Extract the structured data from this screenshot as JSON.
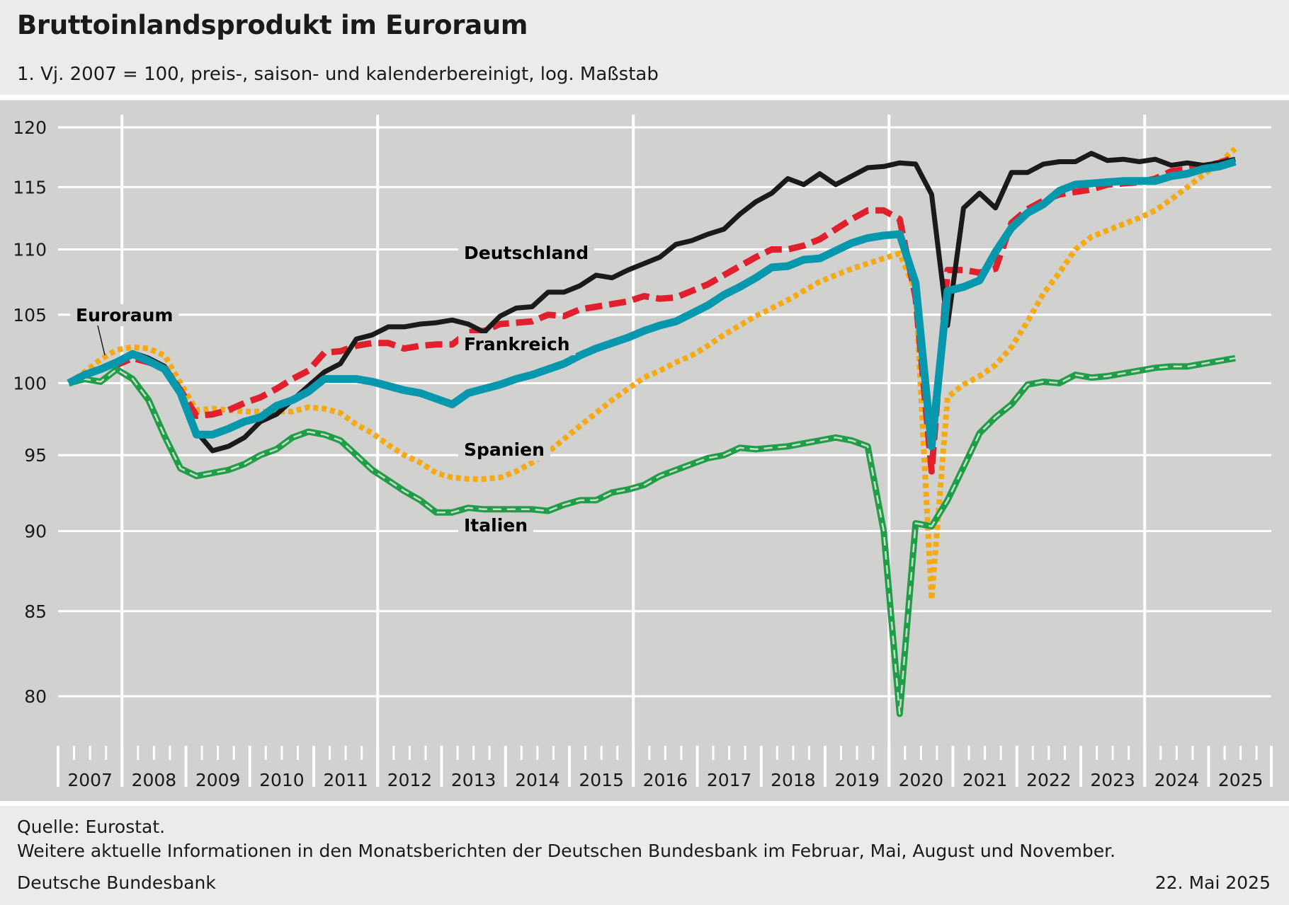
{
  "header": {
    "title": "Bruttoinlandsprodukt im Euroraum",
    "subtitle": "1. Vj. 2007 = 100, preis-, saison- und kalenderbereinigt, log. Maßstab"
  },
  "footer": {
    "source": "Quelle: Eurostat.",
    "note": "Weitere aktuelle Informationen in den Monatsberichten der Deutschen Bundesbank im Februar, Mai, August und November.",
    "publisher": "Deutsche Bundesbank",
    "date": "22. Mai 2025"
  },
  "chart_data": {
    "type": "line",
    "title": "Bruttoinlandsprodukt im Euroraum",
    "subtitle": "1. Vj. 2007 = 100, preis-, saison- und kalenderbereinigt, log. Maßstab",
    "y_scale": "log",
    "ylim": [
      77,
      120
    ],
    "y_ticks": [
      80,
      85,
      90,
      95,
      100,
      105,
      110,
      115,
      120
    ],
    "x_ticks": [
      "2007",
      "2008",
      "2009",
      "2010",
      "2011",
      "2012",
      "2013",
      "2014",
      "2015",
      "2016",
      "2017",
      "2018",
      "2019",
      "2020",
      "2021",
      "2022",
      "2023",
      "2024",
      "2025"
    ],
    "x_start": "2007 Q1",
    "frequency": "quarterly",
    "grid": true,
    "series": [
      {
        "name": "Deutschland",
        "color": "#1a1a1a",
        "style": "solid",
        "values": [
          100,
          100.5,
          101,
          101.5,
          102.2,
          101.8,
          101.2,
          99.5,
          96.6,
          95.3,
          95.6,
          96.2,
          97.3,
          97.8,
          98.8,
          99.8,
          100.8,
          101.4,
          103.2,
          103.5,
          104.1,
          104.1,
          104.3,
          104.4,
          104.6,
          104.3,
          103.7,
          104.9,
          105.5,
          105.6,
          106.7,
          106.7,
          107.2,
          108,
          107.8,
          108.4,
          108.9,
          109.4,
          110.4,
          110.7,
          111.2,
          111.6,
          112.8,
          113.8,
          114.5,
          115.7,
          115.2,
          116.1,
          115.2,
          115.9,
          116.6,
          116.7,
          117.0,
          116.9,
          114.4,
          104.2,
          113.3,
          114.5,
          113.3,
          116.2,
          116.2,
          116.9,
          117.1,
          117.1,
          117.8,
          117.2,
          117.3,
          117.1,
          117.3,
          116.8,
          117.0,
          116.8,
          117.0,
          117.3
        ]
      },
      {
        "name": "Frankreich",
        "color": "#e0202c",
        "style": "dashed",
        "values": [
          100,
          100.5,
          101,
          101.3,
          101.8,
          101.5,
          101.1,
          99.5,
          97.7,
          97.8,
          98.1,
          98.6,
          99.0,
          99.6,
          100.3,
          100.9,
          102.2,
          102.3,
          102.7,
          102.9,
          102.9,
          102.5,
          102.7,
          102.8,
          102.8,
          103.7,
          103.8,
          104.3,
          104.4,
          104.5,
          105.0,
          104.9,
          105.4,
          105.6,
          105.8,
          106.0,
          106.4,
          106.2,
          106.3,
          106.8,
          107.3,
          108.0,
          108.7,
          109.4,
          110.0,
          110.0,
          110.3,
          110.8,
          111.6,
          112.4,
          113.1,
          113.1,
          112.4,
          106.3,
          93.9,
          108.4,
          108.4,
          108.2,
          108.5,
          112.1,
          113.2,
          113.9,
          114.4,
          114.6,
          114.8,
          115.2,
          115.3,
          115.4,
          115.7,
          116.3,
          116.5,
          116.7,
          117.0,
          117.5
        ]
      },
      {
        "name": "Spanien",
        "color": "#f5aa14",
        "style": "dotted",
        "values": [
          100,
          100.8,
          101.7,
          102.4,
          102.6,
          102.5,
          102.0,
          100.0,
          98.1,
          98.2,
          98.1,
          98.0,
          98.0,
          98.0,
          98.0,
          98.3,
          98.2,
          97.9,
          97.1,
          96.5,
          95.7,
          95.0,
          94.5,
          93.8,
          93.5,
          93.4,
          93.4,
          93.5,
          93.9,
          94.5,
          95.2,
          96.1,
          97.0,
          97.9,
          98.8,
          99.6,
          100.4,
          100.9,
          101.5,
          102.0,
          102.7,
          103.5,
          104.2,
          104.9,
          105.5,
          106.1,
          106.8,
          107.5,
          108.0,
          108.5,
          108.9,
          109.3,
          109.7,
          106.8,
          85.7,
          99.0,
          99.9,
          100.5,
          101.3,
          102.6,
          104.5,
          106.6,
          108.2,
          110.0,
          111.0,
          111.5,
          112.0,
          112.5,
          113.1,
          114.0,
          115.0,
          116.0,
          117.0,
          118.2
        ]
      },
      {
        "name": "Italien",
        "color": "#1e9e46",
        "style": "solid-striped",
        "values": [
          100,
          100.3,
          100.1,
          101.0,
          100.3,
          98.8,
          96.3,
          94.1,
          93.6,
          93.8,
          94.0,
          94.4,
          95.0,
          95.4,
          96.2,
          96.6,
          96.4,
          96.0,
          95.0,
          94.0,
          93.3,
          92.6,
          92.0,
          91.2,
          91.2,
          91.5,
          91.4,
          91.4,
          91.4,
          91.4,
          91.3,
          91.7,
          92.0,
          92.0,
          92.5,
          92.7,
          93.0,
          93.6,
          94.0,
          94.4,
          94.8,
          95.0,
          95.5,
          95.4,
          95.5,
          95.6,
          95.8,
          96.0,
          96.2,
          96.0,
          95.6,
          90.0,
          79.0,
          90.5,
          90.3,
          92.0,
          94.2,
          96.5,
          97.6,
          98.5,
          99.9,
          100.1,
          100.0,
          100.6,
          100.4,
          100.5,
          100.7,
          100.9,
          101.1,
          101.2,
          101.2,
          101.4,
          101.6,
          101.8
        ]
      },
      {
        "name": "Euroraum",
        "color": "#0798ad",
        "style": "solid",
        "values": [
          100,
          100.6,
          101.0,
          101.5,
          102.1,
          101.6,
          101.0,
          99.3,
          96.4,
          96.4,
          96.8,
          97.3,
          97.6,
          98.4,
          98.8,
          99.4,
          100.3,
          100.3,
          100.3,
          100.1,
          99.8,
          99.5,
          99.3,
          98.9,
          98.5,
          99.3,
          99.6,
          99.9,
          100.3,
          100.6,
          101.0,
          101.4,
          102.0,
          102.5,
          102.9,
          103.3,
          103.8,
          104.2,
          104.5,
          105.1,
          105.7,
          106.5,
          107.1,
          107.8,
          108.6,
          108.7,
          109.2,
          109.3,
          109.9,
          110.5,
          110.9,
          111.1,
          111.2,
          107.4,
          95.6,
          106.8,
          107.1,
          107.6,
          109.8,
          111.7,
          112.9,
          113.6,
          114.7,
          115.2,
          115.3,
          115.4,
          115.5,
          115.5,
          115.5,
          115.9,
          116.1,
          116.5,
          116.7,
          117.1
        ]
      }
    ],
    "annotations": [
      {
        "text": "Deutschland",
        "series": "Deutschland"
      },
      {
        "text": "Euroraum",
        "series": "Euroraum"
      },
      {
        "text": "Frankreich",
        "series": "Frankreich"
      },
      {
        "text": "Spanien",
        "series": "Spanien"
      },
      {
        "text": "Italien",
        "series": "Italien"
      }
    ]
  }
}
